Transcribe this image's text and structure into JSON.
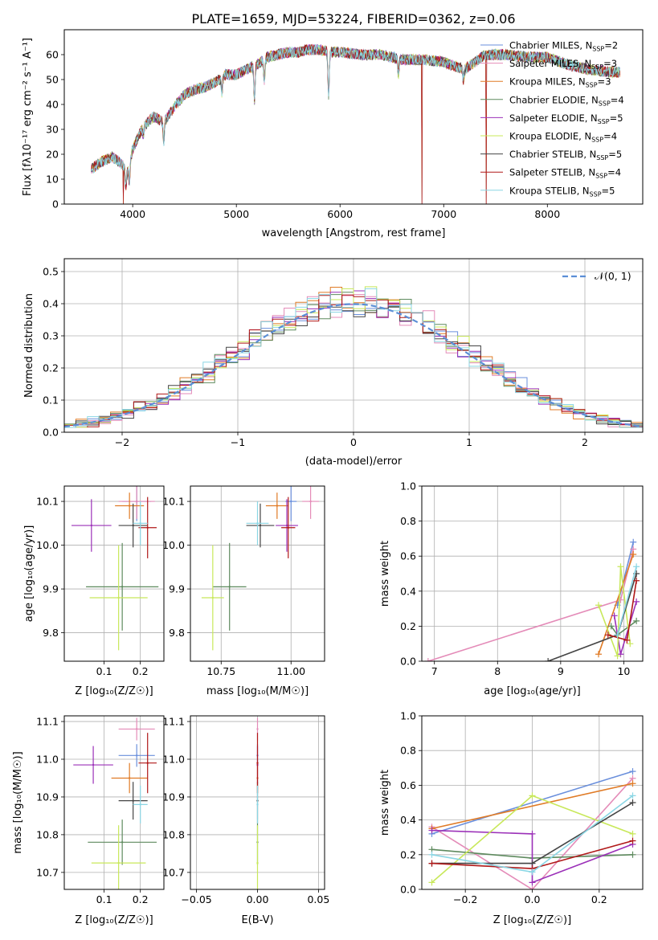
{
  "figure_title": "PLATE=1659, MJD=53224, FIBERID=0362, z=0.06",
  "models": [
    {
      "name": "Chabrier MILES",
      "nssp": "2",
      "color": "#6a8fdc"
    },
    {
      "name": "Salpeter MILES",
      "nssp": "3",
      "color": "#e48bb8"
    },
    {
      "name": "Kroupa MILES",
      "nssp": "3",
      "color": "#e07b26"
    },
    {
      "name": "Chabrier ELODIE",
      "nssp": "4",
      "color": "#5e8a5e"
    },
    {
      "name": "Salpeter ELODIE",
      "nssp": "5",
      "color": "#9b30b8"
    },
    {
      "name": "Kroupa ELODIE",
      "nssp": "4",
      "color": "#c8e85a"
    },
    {
      "name": "Chabrier STELIB",
      "nssp": "5",
      "color": "#444444"
    },
    {
      "name": "Salpeter STELIB",
      "nssp": "4",
      "color": "#b01818"
    },
    {
      "name": "Kroupa STELIB",
      "nssp": "5",
      "color": "#8ad6e4"
    }
  ],
  "chart_data": [
    {
      "id": "spectrum",
      "type": "line",
      "title": "PLATE=1659, MJD=53224, FIBERID=0362, z=0.06",
      "xlabel": "wavelength [Angstrom, rest frame]",
      "ylabel": "Flux [fλ10⁻¹⁷ erg cm⁻² s⁻¹ A⁻¹]",
      "xlim": [
        3340,
        8920
      ],
      "ylim": [
        0,
        70
      ],
      "xticks": [
        4000,
        5000,
        6000,
        7000,
        8000
      ],
      "yticks": [
        0,
        10,
        20,
        30,
        40,
        50,
        60
      ],
      "legend_position": "right",
      "continuum": {
        "x": [
          3600,
          3700,
          3800,
          3900,
          3950,
          4000,
          4100,
          4200,
          4300,
          4400,
          4500,
          4600,
          4700,
          4800,
          4900,
          5000,
          5100,
          5200,
          5300,
          5400,
          5500,
          5600,
          5700,
          5800,
          5900,
          6000,
          6200,
          6400,
          6600,
          6800,
          7000,
          7200,
          7400,
          7600,
          7800,
          8000,
          8200,
          8400,
          8600,
          8700
        ],
        "y": [
          14,
          17,
          19,
          16,
          13,
          22,
          31,
          35,
          33,
          39,
          44,
          46,
          47,
          49,
          52,
          52,
          54,
          56,
          59,
          60,
          61,
          61,
          62,
          62,
          61,
          61,
          60,
          60,
          58,
          58,
          57,
          54,
          60,
          60,
          59,
          59,
          56,
          54,
          53,
          53
        ]
      },
      "absorption_lines": [
        {
          "x": 3934,
          "y": 7
        },
        {
          "x": 3969,
          "y": 9
        },
        {
          "x": 4102,
          "y": 28
        },
        {
          "x": 4300,
          "y": 25
        },
        {
          "x": 4340,
          "y": 35
        },
        {
          "x": 4861,
          "y": 45
        },
        {
          "x": 5175,
          "y": 42
        },
        {
          "x": 5270,
          "y": 50
        },
        {
          "x": 5890,
          "y": 44
        },
        {
          "x": 6563,
          "y": 52
        },
        {
          "x": 7190,
          "y": 50
        }
      ],
      "glitches": [
        {
          "x": 3910,
          "y": 0
        },
        {
          "x": 6790,
          "y": 0
        },
        {
          "x": 7410,
          "y": 0
        }
      ]
    },
    {
      "id": "residuals",
      "type": "line",
      "xlabel": "(data-model)/error",
      "ylabel": "Normed distribution",
      "xlim": [
        -2.5,
        2.5
      ],
      "ylim": [
        0,
        0.54
      ],
      "xticks": [
        -2,
        -1,
        0,
        1,
        2
      ],
      "yticks": [
        0.0,
        0.1,
        0.2,
        0.3,
        0.4,
        0.5
      ],
      "legend_position": "upper right",
      "gaussian_label": "𝒩(0, 1)",
      "gaussian_color": "#5b8ed6",
      "bin_width": 0.1
    },
    {
      "id": "age_vs_Z",
      "type": "scatter",
      "xlabel": "Z [log₁₀(Z/Z☉)]",
      "ylabel": "age  [log₁₀(age/yr)]",
      "xlim": [
        -0.01,
        0.265
      ],
      "ylim": [
        9.735,
        10.135
      ],
      "xticks": [
        0.1,
        0.2
      ],
      "yticks": [
        9.8,
        9.9,
        10.0,
        10.1
      ],
      "points": [
        {
          "model": "Chabrier MILES",
          "x": 0.19,
          "y": 10.1,
          "xerr": 0.04,
          "yerr": 0.045
        },
        {
          "model": "Salpeter MILES",
          "x": 0.19,
          "y": 10.1,
          "xerr": 0.05,
          "yerr": 0.04
        },
        {
          "model": "Kroupa MILES",
          "x": 0.17,
          "y": 10.09,
          "xerr": 0.04,
          "yerr": 0.03
        },
        {
          "model": "Chabrier ELODIE",
          "x": 0.15,
          "y": 9.905,
          "xerr": 0.1,
          "yerr": 0.1
        },
        {
          "model": "Salpeter ELODIE",
          "x": 0.065,
          "y": 10.045,
          "xerr": 0.055,
          "yerr": 0.06
        },
        {
          "model": "Kroupa ELODIE",
          "x": 0.14,
          "y": 9.88,
          "xerr": 0.08,
          "yerr": 0.12
        },
        {
          "model": "Chabrier STELIB",
          "x": 0.18,
          "y": 10.045,
          "xerr": 0.04,
          "yerr": 0.05
        },
        {
          "model": "Salpeter STELIB",
          "x": 0.22,
          "y": 10.04,
          "xerr": 0.025,
          "yerr": 0.07
        },
        {
          "model": "Kroupa STELIB",
          "x": 0.2,
          "y": 10.05,
          "xerr": 0.02,
          "yerr": 0.05
        }
      ]
    },
    {
      "id": "age_vs_mass",
      "type": "scatter",
      "xlabel": "mass [log₁₀(M/M☉)]",
      "ylabel": "",
      "xlim": [
        10.64,
        11.12
      ],
      "ylim": [
        9.735,
        10.135
      ],
      "xticks": [
        10.75,
        11.0
      ],
      "yticks": [
        9.8,
        9.9,
        10.0,
        10.1
      ],
      "points": [
        {
          "model": "Chabrier MILES",
          "x": 11.0,
          "y": 10.1,
          "xerr": 0.02,
          "yerr": 0.045
        },
        {
          "model": "Salpeter MILES",
          "x": 11.07,
          "y": 10.1,
          "xerr": 0.03,
          "yerr": 0.04
        },
        {
          "model": "Kroupa MILES",
          "x": 10.95,
          "y": 10.09,
          "xerr": 0.04,
          "yerr": 0.03
        },
        {
          "model": "Chabrier ELODIE",
          "x": 10.78,
          "y": 9.905,
          "xerr": 0.06,
          "yerr": 0.1
        },
        {
          "model": "Salpeter ELODIE",
          "x": 10.985,
          "y": 10.045,
          "xerr": 0.04,
          "yerr": 0.06
        },
        {
          "model": "Kroupa ELODIE",
          "x": 10.72,
          "y": 9.88,
          "xerr": 0.04,
          "yerr": 0.12
        },
        {
          "model": "Chabrier STELIB",
          "x": 10.89,
          "y": 10.045,
          "xerr": 0.05,
          "yerr": 0.05
        },
        {
          "model": "Salpeter STELIB",
          "x": 10.99,
          "y": 10.04,
          "xerr": 0.025,
          "yerr": 0.07
        },
        {
          "model": "Kroupa STELIB",
          "x": 10.88,
          "y": 10.05,
          "xerr": 0.04,
          "yerr": 0.05
        }
      ]
    },
    {
      "id": "weight_vs_age",
      "type": "line",
      "xlabel": "age  [log₁₀(age/yr)]",
      "ylabel": "mass weight",
      "xlim": [
        6.8,
        10.3
      ],
      "ylim": [
        0,
        1
      ],
      "xticks": [
        7,
        8,
        9,
        10
      ],
      "yticks": [
        0.0,
        0.2,
        0.4,
        0.6,
        0.8,
        1.0
      ],
      "series": [
        {
          "model": "Chabrier MILES",
          "x": [
            9.9,
            10.15
          ],
          "y": [
            0.32,
            0.68
          ]
        },
        {
          "model": "Salpeter MILES",
          "x": [
            6.9,
            9.95,
            10.15
          ],
          "y": [
            0.0,
            0.35,
            0.64
          ]
        },
        {
          "model": "Kroupa MILES",
          "x": [
            9.6,
            10.15
          ],
          "y": [
            0.04,
            0.61
          ]
        },
        {
          "model": "Chabrier ELODIE",
          "x": [
            9.8,
            9.9,
            10.2
          ],
          "y": [
            0.2,
            0.15,
            0.23
          ]
        },
        {
          "model": "Salpeter ELODIE",
          "x": [
            9.85,
            9.95,
            10.2
          ],
          "y": [
            0.26,
            0.04,
            0.34
          ]
        },
        {
          "model": "Kroupa ELODIE",
          "x": [
            9.6,
            9.9,
            9.95,
            10.1
          ],
          "y": [
            0.32,
            0.03,
            0.54,
            0.1
          ]
        },
        {
          "model": "Chabrier STELIB",
          "x": [
            8.8,
            9.9,
            10.2
          ],
          "y": [
            0.0,
            0.15,
            0.5
          ]
        },
        {
          "model": "Salpeter STELIB",
          "x": [
            9.75,
            10.05,
            10.2
          ],
          "y": [
            0.15,
            0.12,
            0.46
          ]
        },
        {
          "model": "Kroupa STELIB",
          "x": [
            9.9,
            10.2
          ],
          "y": [
            0.15,
            0.54
          ]
        }
      ]
    },
    {
      "id": "mass_vs_Z",
      "type": "scatter",
      "xlabel": "Z [log₁₀(Z/Z☉)]",
      "ylabel": "mass [log₁₀(M/M☉)]",
      "xlim": [
        -0.01,
        0.265
      ],
      "ylim": [
        10.655,
        11.115
      ],
      "xticks": [
        0.1,
        0.2
      ],
      "yticks": [
        10.7,
        10.8,
        10.9,
        11.0,
        11.1
      ],
      "points": [
        {
          "model": "Chabrier MILES",
          "x": 0.19,
          "y": 11.01,
          "xerr": 0.05,
          "yerr": 0.03
        },
        {
          "model": "Salpeter MILES",
          "x": 0.19,
          "y": 11.08,
          "xerr": 0.05,
          "yerr": 0.03
        },
        {
          "model": "Kroupa MILES",
          "x": 0.17,
          "y": 10.95,
          "xerr": 0.05,
          "yerr": 0.04
        },
        {
          "model": "Chabrier ELODIE",
          "x": 0.15,
          "y": 10.78,
          "xerr": 0.095,
          "yerr": 0.06
        },
        {
          "model": "Salpeter ELODIE",
          "x": 0.07,
          "y": 10.985,
          "xerr": 0.055,
          "yerr": 0.05
        },
        {
          "model": "Kroupa ELODIE",
          "x": 0.14,
          "y": 10.725,
          "xerr": 0.075,
          "yerr": 0.1
        },
        {
          "model": "Chabrier STELIB",
          "x": 0.18,
          "y": 10.89,
          "xerr": 0.04,
          "yerr": 0.05
        },
        {
          "model": "Salpeter STELIB",
          "x": 0.22,
          "y": 10.99,
          "xerr": 0.025,
          "yerr": 0.08
        },
        {
          "model": "Kroupa STELIB",
          "x": 0.2,
          "y": 10.88,
          "xerr": 0.02,
          "yerr": 0.05
        }
      ]
    },
    {
      "id": "mass_vs_ebv",
      "type": "scatter",
      "xlabel": "E(B-V)",
      "ylabel": "",
      "xlim": [
        -0.055,
        0.055
      ],
      "ylim": [
        10.655,
        11.115
      ],
      "xticks": [
        -0.05,
        0.0,
        0.05
      ],
      "yticks": [
        10.7,
        10.8,
        10.9,
        11.0,
        11.1
      ],
      "points": [
        {
          "model": "Chabrier MILES",
          "x": 0.0,
          "y": 11.01,
          "xerr": 0,
          "yerr": 0.03
        },
        {
          "model": "Salpeter MILES",
          "x": 0.0,
          "y": 11.08,
          "xerr": 0,
          "yerr": 0.03
        },
        {
          "model": "Kroupa MILES",
          "x": 0.0,
          "y": 10.95,
          "xerr": 0,
          "yerr": 0.04
        },
        {
          "model": "Chabrier ELODIE",
          "x": 0.0,
          "y": 10.78,
          "xerr": 0,
          "yerr": 0.06
        },
        {
          "model": "Salpeter ELODIE",
          "x": 0.0,
          "y": 10.985,
          "xerr": 0,
          "yerr": 0.05
        },
        {
          "model": "Kroupa ELODIE",
          "x": 0.0,
          "y": 10.725,
          "xerr": 0,
          "yerr": 0.1
        },
        {
          "model": "Chabrier STELIB",
          "x": 0.0,
          "y": 10.89,
          "xerr": 0,
          "yerr": 0.05
        },
        {
          "model": "Salpeter STELIB",
          "x": 0.0,
          "y": 10.99,
          "xerr": 0,
          "yerr": 0.08
        },
        {
          "model": "Kroupa STELIB",
          "x": 0.0,
          "y": 10.88,
          "xerr": 0,
          "yerr": 0.05
        }
      ]
    },
    {
      "id": "weight_vs_Z",
      "type": "line",
      "xlabel": "Z [log₁₀(Z/Z☉)]",
      "ylabel": "mass weight",
      "xlim": [
        -0.33,
        0.33
      ],
      "ylim": [
        0,
        1
      ],
      "xticks": [
        -0.2,
        0.0,
        0.2
      ],
      "yticks": [
        0.0,
        0.2,
        0.4,
        0.6,
        0.8,
        1.0
      ],
      "series": [
        {
          "model": "Chabrier MILES",
          "x": [
            -0.3,
            0.3
          ],
          "y": [
            0.32,
            0.68
          ]
        },
        {
          "model": "Salpeter MILES",
          "x": [
            -0.3,
            0.0,
            0.3
          ],
          "y": [
            0.36,
            0.0,
            0.64
          ]
        },
        {
          "model": "Kroupa MILES",
          "x": [
            -0.3,
            0.3
          ],
          "y": [
            0.35,
            0.61
          ]
        },
        {
          "model": "Chabrier ELODIE",
          "x": [
            -0.3,
            0.0,
            0.3
          ],
          "y": [
            0.23,
            0.18,
            0.2
          ]
        },
        {
          "model": "Salpeter ELODIE",
          "x": [
            -0.3,
            0.0,
            0.0,
            0.3
          ],
          "y": [
            0.34,
            0.32,
            0.04,
            0.26
          ]
        },
        {
          "model": "Kroupa ELODIE",
          "x": [
            -0.3,
            0.0,
            0.3
          ],
          "y": [
            0.04,
            0.54,
            0.32
          ]
        },
        {
          "model": "Chabrier STELIB",
          "x": [
            -0.3,
            0.0,
            0.3
          ],
          "y": [
            0.15,
            0.15,
            0.5
          ]
        },
        {
          "model": "Salpeter STELIB",
          "x": [
            -0.3,
            0.0,
            0.3
          ],
          "y": [
            0.15,
            0.12,
            0.28
          ]
        },
        {
          "model": "Kroupa STELIB",
          "x": [
            -0.3,
            0.0,
            0.3
          ],
          "y": [
            0.2,
            0.1,
            0.54
          ]
        }
      ]
    }
  ]
}
